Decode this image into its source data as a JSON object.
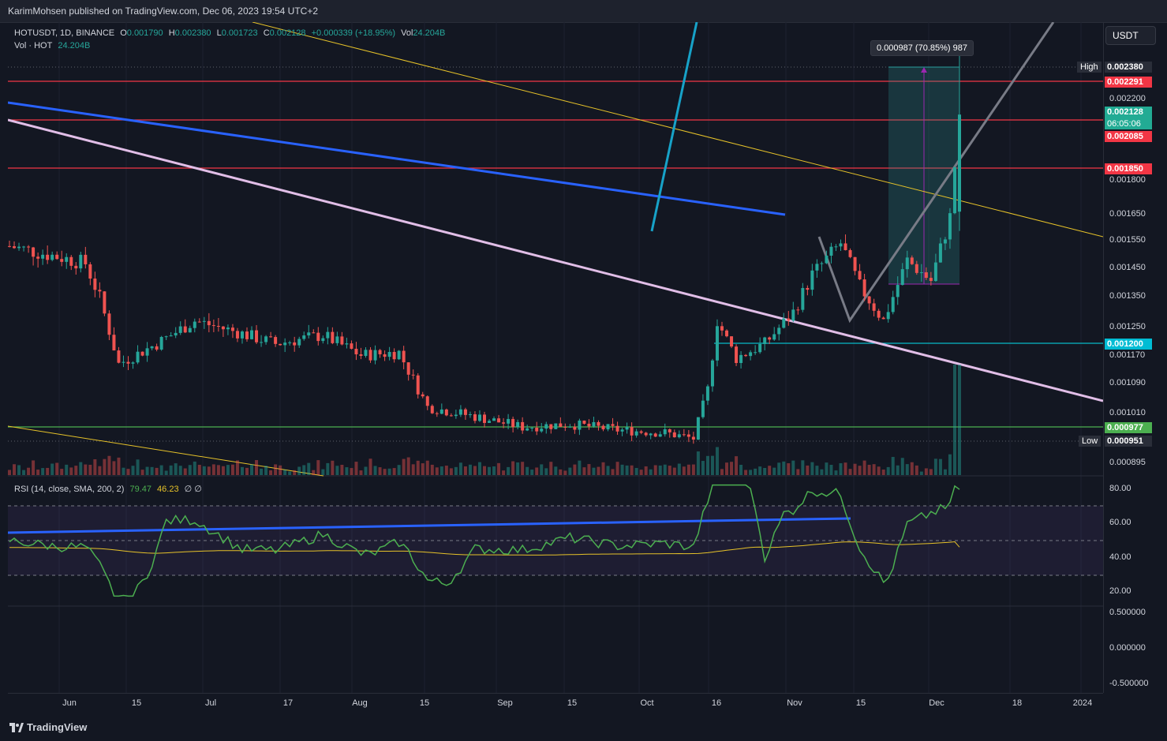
{
  "header": {
    "publisher": "KarimMohsen published on TradingView.com, Dec 06, 2023 19:54 UTC+2"
  },
  "legend": {
    "symbol": "HOTUSDT, 1D, BINANCE",
    "o_label": "O",
    "o": "0.001790",
    "h_label": "H",
    "h": "0.002380",
    "l_label": "L",
    "l": "0.001723",
    "c_label": "C",
    "c": "0.002128",
    "change": "+0.000339 (+18.95%)",
    "vol_label": "Vol",
    "vol": "24.204B",
    "vol_row_label": "Vol · HOT",
    "vol_row_value": "24.204B",
    "rsi_label": "RSI (14, close, SMA, 200, 2)",
    "rsi_value": "79.47",
    "rsi_sma": "46.23",
    "rsi_extra": "∅ ∅"
  },
  "price_axis": {
    "currency": "USDT",
    "ticks": [
      "0.002200",
      "0.001800",
      "0.001650",
      "0.001550",
      "0.001450",
      "0.001350",
      "0.001250",
      "0.001170",
      "0.001090",
      "0.001010",
      "0.000895"
    ],
    "tags": {
      "high_label": "High",
      "high": "0.002380",
      "r1": "0.002291",
      "last": "0.002128",
      "countdown": "06:05:06",
      "r2": "0.002085",
      "r3": "0.001850",
      "s1": "0.001200",
      "s2": "0.000977",
      "low_label": "Low",
      "low": "0.000951"
    }
  },
  "rsi_axis": {
    "ticks": [
      "80.00",
      "60.00",
      "40.00",
      "20.00"
    ]
  },
  "osc_axis": {
    "ticks": [
      "0.500000",
      "0.000000",
      "-0.500000"
    ]
  },
  "time_axis": {
    "labels": [
      "Jun",
      "15",
      "Jul",
      "17",
      "Aug",
      "15",
      "Sep",
      "15",
      "Oct",
      "16",
      "Nov",
      "15",
      "Dec",
      "18",
      "2024"
    ]
  },
  "measure": {
    "label": "0.000987 (70.85%) 987"
  },
  "footer": {
    "brand": "TradingView"
  },
  "colors": {
    "up": "#26a69a",
    "down": "#ef5350",
    "bg": "#131722",
    "rsi": "#4caf50",
    "sma": "#e6c229"
  },
  "chart_data": {
    "type": "candlestick",
    "title": "HOTUSDT, 1D, BINANCE",
    "series": [
      {
        "name": "HOTUSDT",
        "ohlc_last": {
          "open": 0.00179,
          "high": 0.00238,
          "low": 0.001723,
          "close": 0.002128
        },
        "close_path": [
          {
            "x": "2023-05-20",
            "y": 0.00167
          },
          {
            "x": "2023-05-31",
            "y": 0.00163
          },
          {
            "x": "2023-06-05",
            "y": 0.00161
          },
          {
            "x": "2023-06-08",
            "y": 0.00149
          },
          {
            "x": "2023-06-12",
            "y": 0.00126
          },
          {
            "x": "2023-06-20",
            "y": 0.00133
          },
          {
            "x": "2023-06-28",
            "y": 0.00141
          },
          {
            "x": "2023-07-07",
            "y": 0.00137
          },
          {
            "x": "2023-07-15",
            "y": 0.00133
          },
          {
            "x": "2023-07-25",
            "y": 0.00136
          },
          {
            "x": "2023-08-02",
            "y": 0.00129
          },
          {
            "x": "2023-08-10",
            "y": 0.0013
          },
          {
            "x": "2023-08-16",
            "y": 0.00111
          },
          {
            "x": "2023-08-25",
            "y": 0.00108
          },
          {
            "x": "2023-09-05",
            "y": 0.00104
          },
          {
            "x": "2023-09-15",
            "y": 0.00105
          },
          {
            "x": "2023-09-25",
            "y": 0.00103
          },
          {
            "x": "2023-10-05",
            "y": 0.00102
          },
          {
            "x": "2023-10-11",
            "y": 0.001
          },
          {
            "x": "2023-10-14",
            "y": 0.00117
          },
          {
            "x": "2023-10-16",
            "y": 0.00141
          },
          {
            "x": "2023-10-20",
            "y": 0.00128
          },
          {
            "x": "2023-10-26",
            "y": 0.00133
          },
          {
            "x": "2023-11-01",
            "y": 0.00144
          },
          {
            "x": "2023-11-05",
            "y": 0.00157
          },
          {
            "x": "2023-11-11",
            "y": 0.00168
          },
          {
            "x": "2023-11-15",
            "y": 0.00153
          },
          {
            "x": "2023-11-20",
            "y": 0.00141
          },
          {
            "x": "2023-11-25",
            "y": 0.00162
          },
          {
            "x": "2023-11-30",
            "y": 0.00155
          },
          {
            "x": "2023-12-04",
            "y": 0.00177
          },
          {
            "x": "2023-12-06",
            "y": 0.002128
          }
        ]
      }
    ],
    "levels": [
      0.002291,
      0.002085,
      0.00185,
      0.0012,
      0.000977
    ],
    "rsi": {
      "value": 79.47,
      "sma": 46.23,
      "bands": [
        30,
        50,
        70
      ]
    },
    "ylim": [
      0.00087,
      0.00245
    ]
  }
}
